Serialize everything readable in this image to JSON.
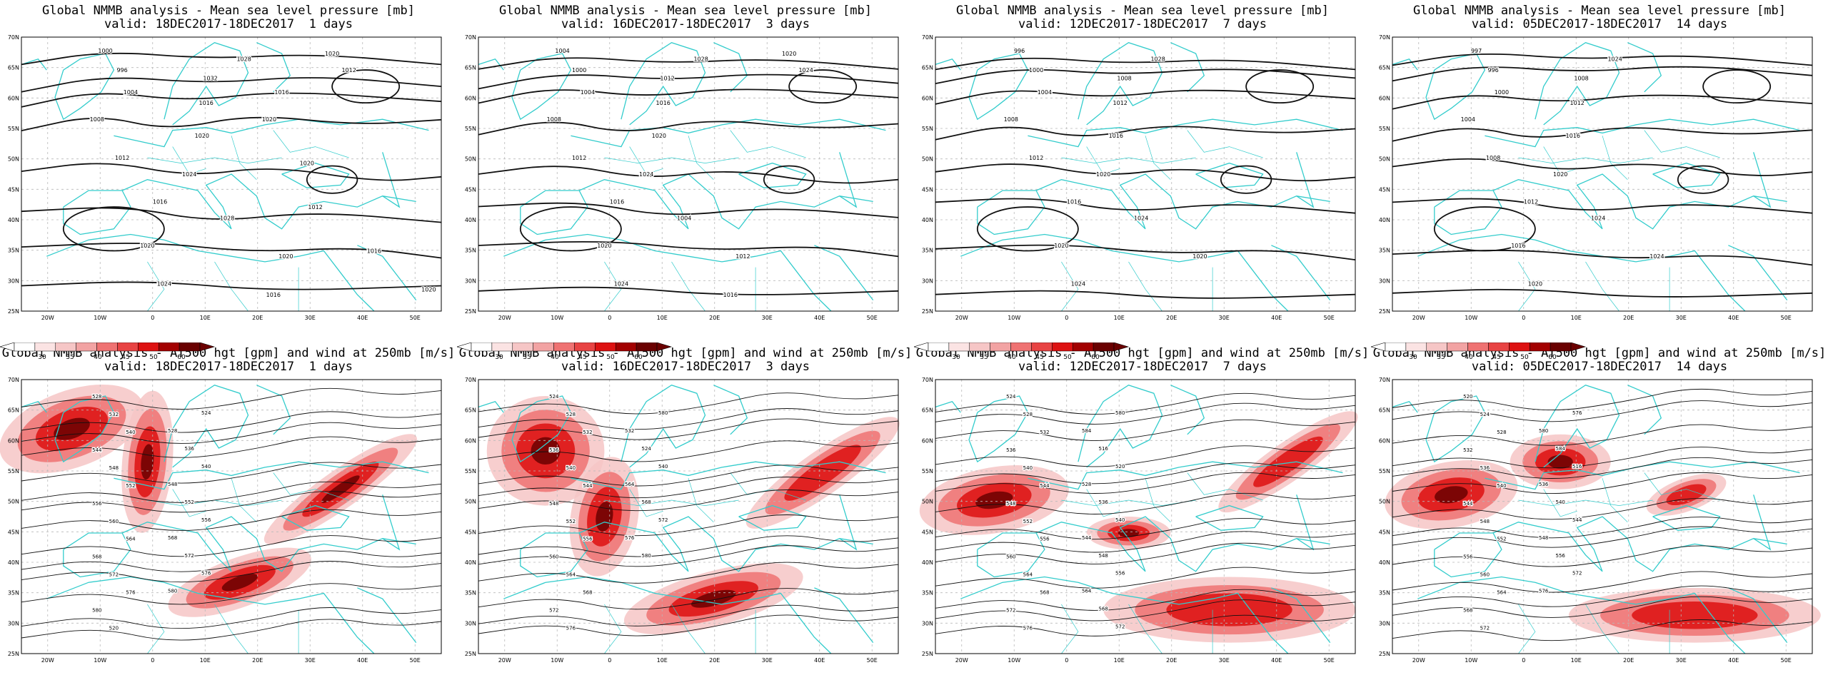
{
  "colors": {
    "coast": "#33cccc",
    "contour": "#111111",
    "grid": "#b8b8b8",
    "wind_light": "#f6c6c6",
    "wind_mid": "#ef7272",
    "wind_strong": "#dd1111",
    "wind_max": "#6a0000"
  },
  "axes": {
    "lat_labels": [
      "70N",
      "65N",
      "60N",
      "55N",
      "50N",
      "45N",
      "40N",
      "35N",
      "30N",
      "25N"
    ],
    "lon_labels": [
      "20W",
      "10W",
      "0",
      "10E",
      "20E",
      "30E",
      "40E",
      "50E"
    ]
  },
  "colorbar": {
    "ticks": [
      "30",
      "35",
      "40",
      "45",
      "50",
      "60"
    ]
  },
  "top_panels": [
    {
      "title": "Global NMMB analysis - Mean sea level pressure [mb]",
      "subtitle": "valid: 18DEC2017-18DEC2017  1 days",
      "labels": [
        "1000",
        "996",
        "1004",
        "1008",
        "1012",
        "1016",
        "1020",
        "1024",
        "1028",
        "1032",
        "1016",
        "1020",
        "1024",
        "1028",
        "1020",
        "1016",
        "1020",
        "1012",
        "1016",
        "1020",
        "1020",
        "1012",
        "1016",
        "1020"
      ]
    },
    {
      "title": "Global NMMB analysis - Mean sea level pressure [mb]",
      "subtitle": "valid: 16DEC2017-18DEC2017  3 days",
      "labels": [
        "1004",
        "1000",
        "1004",
        "1008",
        "1012",
        "1016",
        "1020",
        "1024",
        "1028",
        "1012",
        "1016",
        "1020",
        "1024",
        "1004",
        "1012",
        "1016",
        "1020",
        "1024"
      ]
    },
    {
      "title": "Global NMMB analysis - Mean sea level pressure [mb]",
      "subtitle": "valid: 12DEC2017-18DEC2017  7 days",
      "labels": [
        "996",
        "1000",
        "1004",
        "1008",
        "1012",
        "1016",
        "1020",
        "1024",
        "1028",
        "1008",
        "1012",
        "1016",
        "1020",
        "1024",
        "1020"
      ]
    },
    {
      "title": "Global NMMB analysis - Mean sea level pressure [mb]",
      "subtitle": "valid: 05DEC2017-18DEC2017  14 days",
      "labels": [
        "997",
        "996",
        "1000",
        "1004",
        "1008",
        "1012",
        "1016",
        "1020",
        "1024",
        "1008",
        "1012",
        "1016",
        "1020",
        "1024",
        "1024"
      ]
    }
  ],
  "bottom_panels": [
    {
      "title": "Global NMMB analysis - AT500 hgt [gpm] and wind at 250mb [m/s]",
      "subtitle": "valid: 18DEC2017-18DEC2017  1 days",
      "labels": [
        "528",
        "532",
        "540",
        "544",
        "548",
        "552",
        "556",
        "560",
        "564",
        "568",
        "572",
        "576",
        "580",
        "520",
        "524",
        "528",
        "536",
        "540",
        "548",
        "552",
        "556",
        "568",
        "572",
        "576",
        "580"
      ]
    },
    {
      "title": "Global NMMB analysis - AT500 hgt [gpm] and wind at 250mb [m/s]",
      "subtitle": "valid: 16DEC2017-18DEC2017  3 days",
      "labels": [
        "524",
        "528",
        "532",
        "536",
        "540",
        "544",
        "548",
        "552",
        "556",
        "560",
        "564",
        "568",
        "572",
        "576",
        "580",
        "532",
        "524",
        "540",
        "564",
        "568",
        "572",
        "576",
        "580"
      ]
    },
    {
      "title": "Global NMMB analysis - AT500 hgt [gpm] and wind at 250mb [m/s]",
      "subtitle": "valid: 12DEC2017-18DEC2017  7 days",
      "labels": [
        "524",
        "528",
        "532",
        "536",
        "540",
        "544",
        "548",
        "552",
        "556",
        "560",
        "564",
        "568",
        "572",
        "576",
        "580",
        "584",
        "516",
        "520",
        "528",
        "536",
        "540",
        "544",
        "548",
        "556",
        "564",
        "568",
        "572"
      ]
    },
    {
      "title": "Global NMMB analysis - AT500 hgt [gpm] and wind at 250mb [m/s]",
      "subtitle": "valid: 05DEC2017-18DEC2017  14 days",
      "labels": [
        "520",
        "524",
        "528",
        "532",
        "536",
        "540",
        "544",
        "548",
        "552",
        "556",
        "560",
        "564",
        "568",
        "572",
        "576",
        "580",
        "584",
        "516",
        "536",
        "540",
        "544",
        "548",
        "556",
        "572",
        "576"
      ]
    }
  ]
}
